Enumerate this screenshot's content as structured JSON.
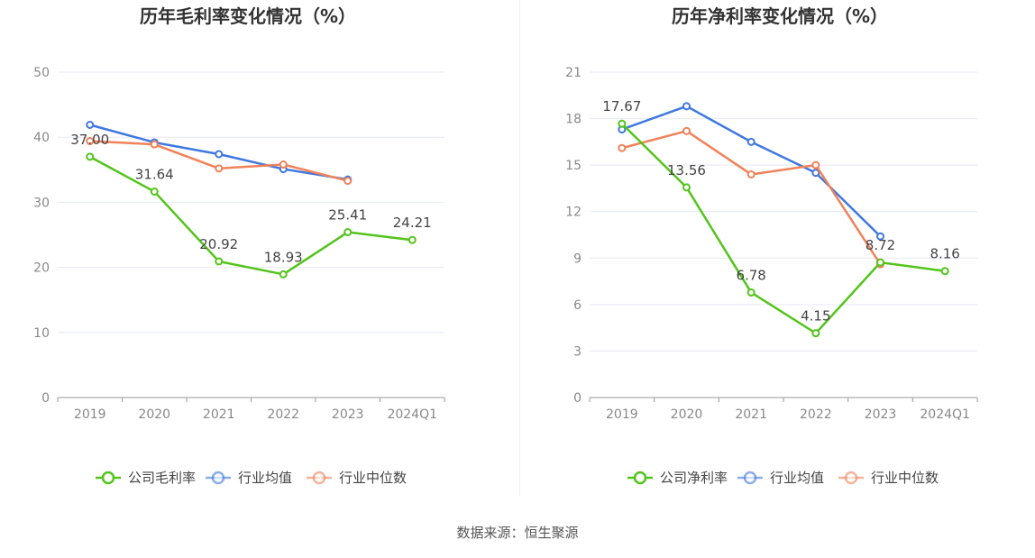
{
  "source_text": "数据来源：恒生聚源",
  "chart_data": [
    {
      "type": "line",
      "title": "历年毛利率变化情况（%）",
      "categories": [
        "2019",
        "2020",
        "2021",
        "2022",
        "2023",
        "2024Q1"
      ],
      "ylim": [
        0,
        50
      ],
      "yticks": [
        0,
        10,
        20,
        30,
        40,
        50
      ],
      "grid": true,
      "legend_position": "bottom",
      "series": [
        {
          "name": "公司毛利率",
          "color": "#52c41a",
          "values": [
            37.0,
            31.64,
            20.92,
            18.93,
            25.41,
            24.21
          ],
          "labels": [
            "37.00",
            "31.64",
            "20.92",
            "18.93",
            "25.41",
            "24.21"
          ]
        },
        {
          "name": "行业均值",
          "color": "#3f78e0",
          "values": [
            41.9,
            39.2,
            37.4,
            35.1,
            33.5,
            null
          ]
        },
        {
          "name": "行业中位数",
          "color": "#f0825a",
          "values": [
            39.4,
            38.9,
            35.2,
            35.8,
            33.3,
            null
          ]
        }
      ]
    },
    {
      "type": "line",
      "title": "历年净利率变化情况（%）",
      "categories": [
        "2019",
        "2020",
        "2021",
        "2022",
        "2023",
        "2024Q1"
      ],
      "ylim": [
        0,
        21
      ],
      "yticks": [
        0,
        3,
        6,
        9,
        12,
        15,
        18,
        21
      ],
      "grid": true,
      "legend_position": "bottom",
      "series": [
        {
          "name": "公司净利率",
          "color": "#52c41a",
          "values": [
            17.67,
            13.56,
            6.78,
            4.15,
            8.72,
            8.16
          ],
          "labels": [
            "17.67",
            "13.56",
            "6.78",
            "4.15",
            "8.72",
            "8.16"
          ]
        },
        {
          "name": "行业均值",
          "color": "#3f78e0",
          "values": [
            17.3,
            18.8,
            16.5,
            14.5,
            10.4,
            null
          ]
        },
        {
          "name": "行业中位数",
          "color": "#f0825a",
          "values": [
            16.1,
            17.2,
            14.4,
            15.0,
            8.6,
            null
          ]
        }
      ]
    }
  ]
}
